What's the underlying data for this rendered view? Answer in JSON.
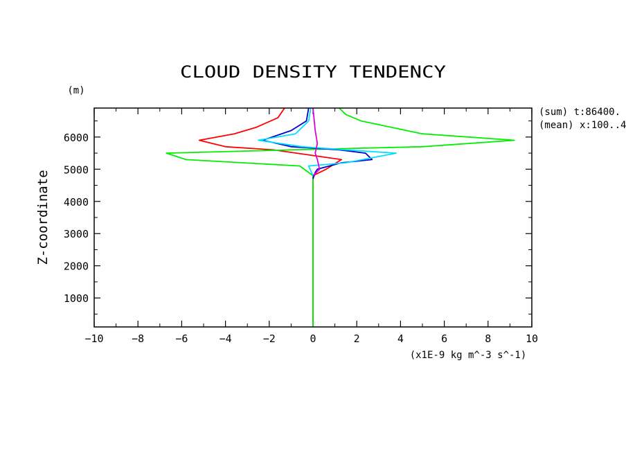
{
  "chart_data": {
    "type": "line",
    "title": "CLOUD DENSITY TENDENCY",
    "xlabel": "(x1E-9 kg m^-3 s^-1)",
    "ylabel": "Z-coordinate",
    "yunit": "(m)",
    "xlim": [
      -10,
      10
    ],
    "ylim": [
      100,
      6900
    ],
    "xticks": [
      -10,
      -8,
      -6,
      -4,
      -2,
      0,
      2,
      4,
      6,
      8,
      10
    ],
    "yticks": [
      1000,
      2000,
      3000,
      4000,
      5000,
      6000
    ],
    "annotations": [
      "(sum) t:86400.",
      "(mean) x:100..4"
    ],
    "grid": false,
    "series": [
      {
        "color": "#ff0000",
        "points": [
          [
            0,
            100
          ],
          [
            0,
            4800
          ],
          [
            0.3,
            4900
          ],
          [
            0.6,
            5000
          ],
          [
            1.3,
            5300
          ],
          [
            -1.8,
            5600
          ],
          [
            -4,
            5700
          ],
          [
            -5.2,
            5900
          ],
          [
            -3.6,
            6100
          ],
          [
            -2.6,
            6300
          ],
          [
            -1.6,
            6600
          ],
          [
            -1.3,
            6900
          ]
        ]
      },
      {
        "color": "#00ee00",
        "points": [
          [
            0,
            100
          ],
          [
            0,
            4800
          ],
          [
            -0.6,
            5100
          ],
          [
            -5.8,
            5300
          ],
          [
            -6.7,
            5500
          ],
          [
            -1,
            5600
          ],
          [
            5,
            5700
          ],
          [
            9.2,
            5900
          ],
          [
            5,
            6100
          ],
          [
            2.2,
            6500
          ],
          [
            1.5,
            6700
          ],
          [
            1.2,
            6900
          ]
        ]
      },
      {
        "color": "#0000cc",
        "points": [
          [
            0,
            4700
          ],
          [
            0.1,
            4900
          ],
          [
            0.2,
            5000
          ],
          [
            1.3,
            5200
          ],
          [
            2.7,
            5300
          ],
          [
            2.4,
            5500
          ],
          [
            1.2,
            5600
          ],
          [
            -1,
            5700
          ],
          [
            -2.3,
            5900
          ],
          [
            -1,
            6200
          ],
          [
            -0.3,
            6500
          ],
          [
            -0.2,
            6900
          ]
        ]
      },
      {
        "color": "#00ddff",
        "points": [
          [
            0,
            4800
          ],
          [
            -0.2,
            5100
          ],
          [
            1.5,
            5200
          ],
          [
            3.8,
            5500
          ],
          [
            1.5,
            5600
          ],
          [
            -0.5,
            5700
          ],
          [
            -2.5,
            5900
          ],
          [
            -0.8,
            6100
          ],
          [
            -0.2,
            6500
          ],
          [
            -0.1,
            6900
          ]
        ]
      },
      {
        "color": "#dd00dd",
        "points": [
          [
            0,
            4800
          ],
          [
            0.3,
            5000
          ],
          [
            0.2,
            5300
          ],
          [
            0.1,
            5500
          ],
          [
            0.2,
            5800
          ],
          [
            0.1,
            6200
          ],
          [
            0,
            6900
          ]
        ]
      }
    ]
  }
}
